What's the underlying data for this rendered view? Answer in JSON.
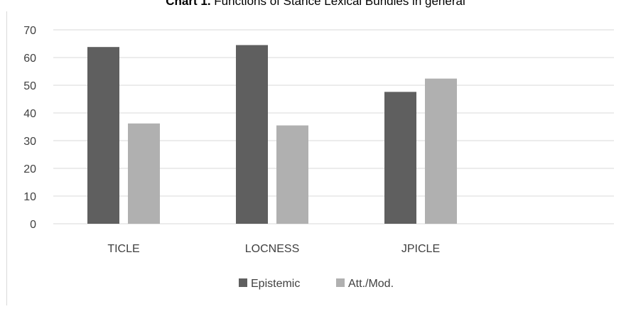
{
  "chart_data": {
    "type": "bar",
    "title_bold": "Chart 1.",
    "title_rest": " Functions of Stance Lexical Bundles in general",
    "categories": [
      "TICLE",
      "LOCNESS",
      "JPICLE"
    ],
    "series": [
      {
        "name": "Epistemic",
        "values": [
          63.8,
          64.5,
          47.6
        ]
      },
      {
        "name": "Att./Mod.",
        "values": [
          36.2,
          35.5,
          52.4
        ]
      }
    ],
    "ylim": [
      0,
      70
    ],
    "yticks": [
      0,
      10,
      20,
      30,
      40,
      50,
      60,
      70
    ],
    "grid": true,
    "legend": "bottom"
  },
  "colors": {
    "epistemic": "#5f5f5f",
    "att_mod": "#b0b0b0",
    "grid": "#d9d9d9",
    "axis_text": "#404040",
    "frame": "#d9d9d9",
    "title": "#000000"
  }
}
